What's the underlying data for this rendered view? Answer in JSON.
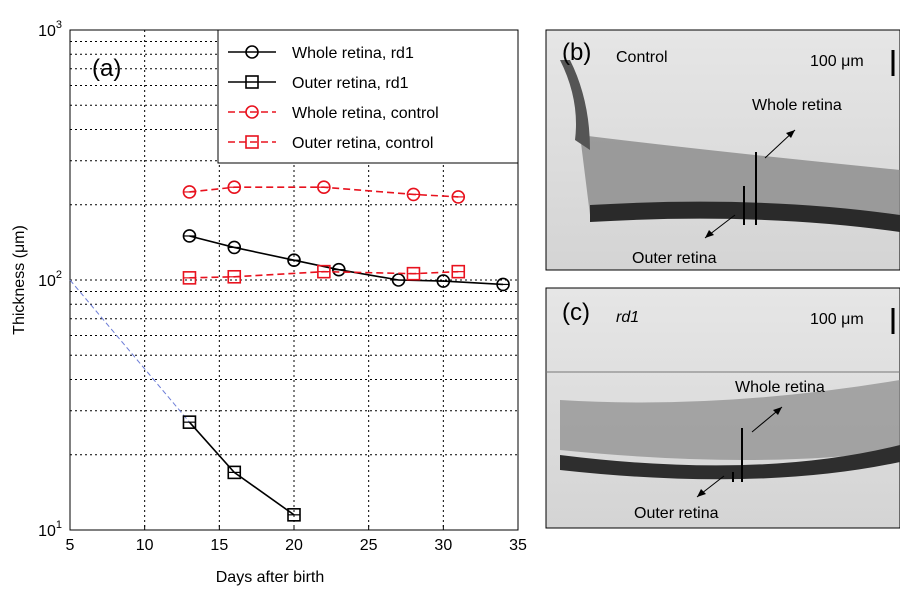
{
  "chart_data": {
    "type": "line",
    "panel_label": "(a)",
    "x_label": "Days after birth",
    "y_label": "Thickness (μm)",
    "xlim": [
      5,
      35
    ],
    "xticks": [
      5,
      10,
      15,
      20,
      25,
      30,
      35
    ],
    "ylim": [
      10,
      1000
    ],
    "log_y": true,
    "yticks": [
      {
        "value": 10,
        "label": "10",
        "exponent": "1"
      },
      {
        "value": 100,
        "label": "10",
        "exponent": "2"
      },
      {
        "value": 1000,
        "label": "10",
        "exponent": "3"
      }
    ],
    "minor_yticks": [
      20,
      30,
      40,
      50,
      60,
      70,
      80,
      90,
      200,
      300,
      400,
      500,
      600,
      700,
      800,
      900
    ],
    "grid": true,
    "legend": "top-right",
    "series": [
      {
        "name": "Whole retina, rd1",
        "color": "#000000",
        "marker": "circle",
        "dashed": false,
        "x": [
          13,
          16,
          20,
          23,
          27,
          30,
          34
        ],
        "values": [
          150,
          135,
          120,
          110,
          100,
          99,
          96
        ]
      },
      {
        "name": "Outer retina, rd1",
        "color": "#000000",
        "marker": "square",
        "dashed": false,
        "x": [
          13,
          16,
          20
        ],
        "values": [
          27,
          17,
          11.5
        ]
      },
      {
        "name": "Whole retina, control",
        "color": "#e8121e",
        "marker": "circle",
        "dashed": true,
        "x": [
          13,
          16,
          22,
          28,
          31
        ],
        "values": [
          225,
          235,
          235,
          220,
          215
        ]
      },
      {
        "name": "Outer retina, control",
        "color": "#e8121e",
        "marker": "square",
        "dashed": true,
        "x": [
          13,
          16,
          22,
          28,
          31
        ],
        "values": [
          102,
          103,
          108,
          106,
          108
        ]
      }
    ],
    "fit_line": {
      "color": "#6f7fd8",
      "x": [
        5,
        13
      ],
      "values": [
        100,
        27
      ]
    }
  },
  "panels": [
    {
      "label": "(b)",
      "condition": "Control",
      "scale_bar": "100 μm",
      "whole": "Whole retina",
      "outer": "Outer retina"
    },
    {
      "label": "(c)",
      "condition": "rd1",
      "scale_bar": "100 μm",
      "whole": "Whole retina",
      "outer": "Outer retina"
    }
  ]
}
